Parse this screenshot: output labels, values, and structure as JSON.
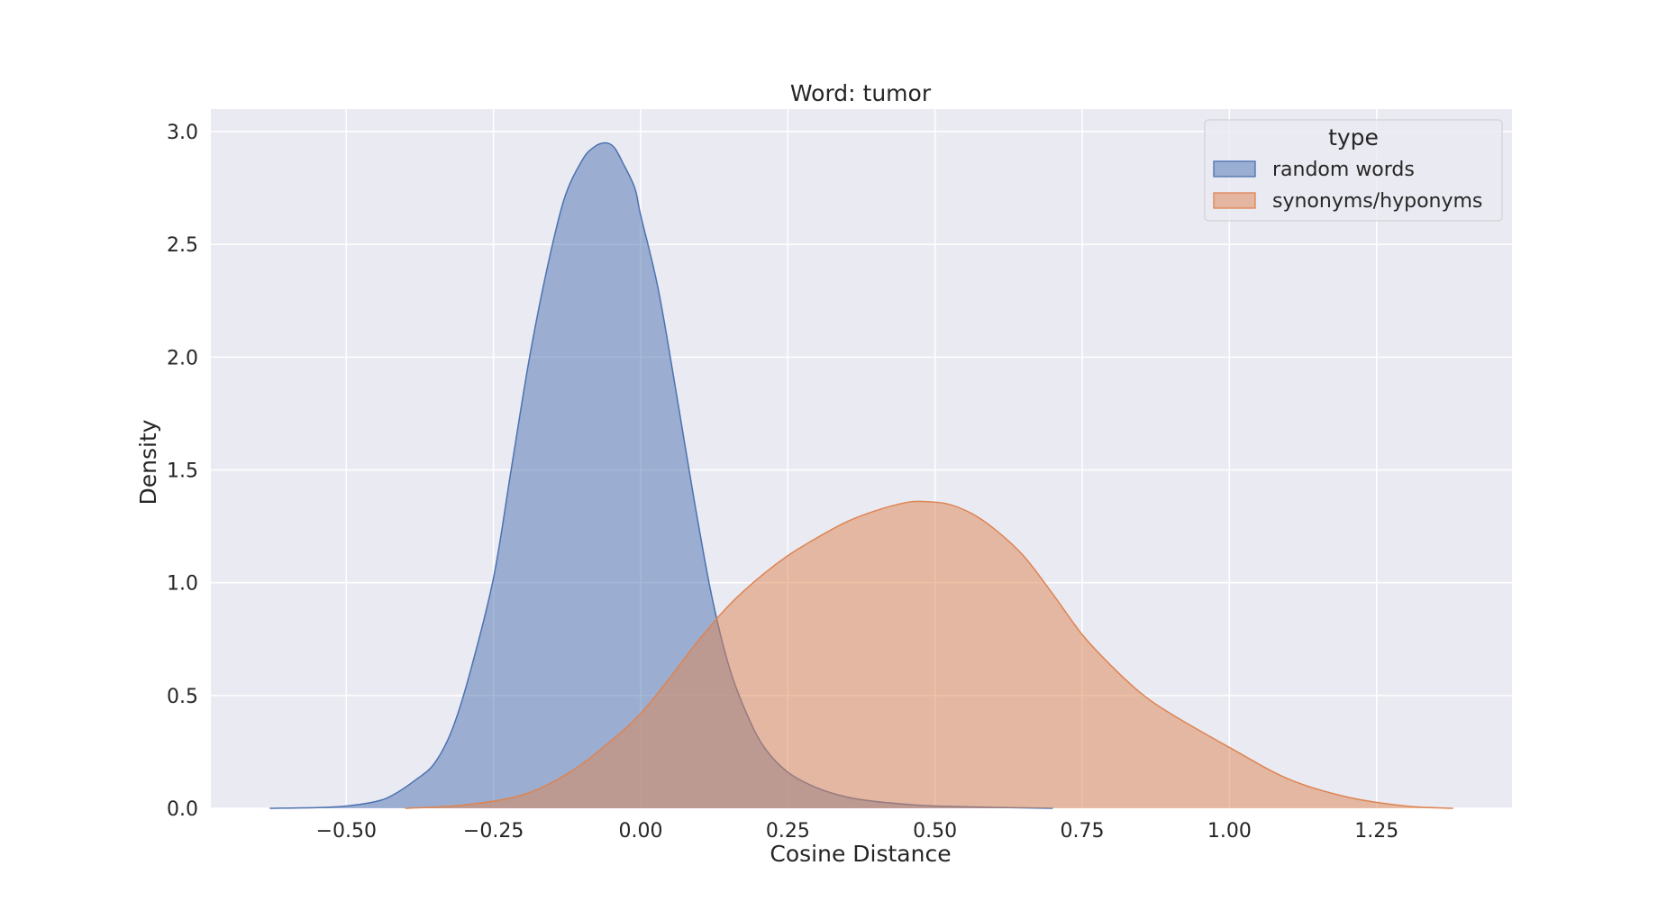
{
  "chart_data": {
    "type": "area",
    "title": "Word: tumor",
    "xlabel": "Cosine Distance",
    "ylabel": "Density",
    "xlim": [
      -0.73,
      1.48
    ],
    "ylim": [
      0,
      3.1
    ],
    "xticks": [
      -0.5,
      -0.25,
      0.0,
      0.25,
      0.5,
      0.75,
      1.0,
      1.25
    ],
    "xtick_labels": [
      "−0.50",
      "−0.25",
      "0.00",
      "0.25",
      "0.50",
      "0.75",
      "1.00",
      "1.25"
    ],
    "yticks": [
      0.0,
      0.5,
      1.0,
      1.5,
      2.0,
      2.5,
      3.0
    ],
    "ytick_labels": [
      "0.0",
      "0.5",
      "1.0",
      "1.5",
      "2.0",
      "2.5",
      "3.0"
    ],
    "grid": true,
    "legend": {
      "title": "type",
      "position": "top-right"
    },
    "series": [
      {
        "name": "random words",
        "color": "#4c72b0",
        "fill": "#9aadd2",
        "x": [
          -0.63,
          -0.55,
          -0.5,
          -0.45,
          -0.42,
          -0.38,
          -0.35,
          -0.32,
          -0.29,
          -0.25,
          -0.22,
          -0.19,
          -0.16,
          -0.13,
          -0.1,
          -0.08,
          -0.06,
          -0.045,
          -0.03,
          -0.01,
          0.0,
          0.03,
          0.06,
          0.09,
          0.12,
          0.15,
          0.18,
          0.21,
          0.25,
          0.3,
          0.35,
          0.4,
          0.45,
          0.5,
          0.6,
          0.7
        ],
        "y": [
          0.0,
          0.003,
          0.01,
          0.03,
          0.06,
          0.13,
          0.2,
          0.35,
          0.6,
          1.02,
          1.5,
          1.98,
          2.38,
          2.7,
          2.87,
          2.93,
          2.95,
          2.93,
          2.86,
          2.75,
          2.63,
          2.3,
          1.85,
          1.38,
          0.95,
          0.63,
          0.42,
          0.27,
          0.16,
          0.09,
          0.05,
          0.03,
          0.018,
          0.01,
          0.004,
          0.0
        ]
      },
      {
        "name": "synonyms/hyponyms",
        "color": "#dd8452",
        "fill": "#e4b6a0",
        "x": [
          -0.4,
          -0.3,
          -0.2,
          -0.12,
          -0.05,
          0.0,
          0.05,
          0.1,
          0.15,
          0.2,
          0.25,
          0.3,
          0.35,
          0.4,
          0.45,
          0.48,
          0.52,
          0.56,
          0.6,
          0.65,
          0.7,
          0.75,
          0.8,
          0.85,
          0.9,
          1.0,
          1.1,
          1.2,
          1.3,
          1.38
        ],
        "y": [
          0.0,
          0.015,
          0.06,
          0.16,
          0.3,
          0.42,
          0.58,
          0.75,
          0.9,
          1.02,
          1.12,
          1.2,
          1.27,
          1.32,
          1.355,
          1.36,
          1.35,
          1.31,
          1.24,
          1.12,
          0.95,
          0.77,
          0.63,
          0.51,
          0.42,
          0.27,
          0.13,
          0.05,
          0.01,
          0.0
        ]
      }
    ]
  }
}
